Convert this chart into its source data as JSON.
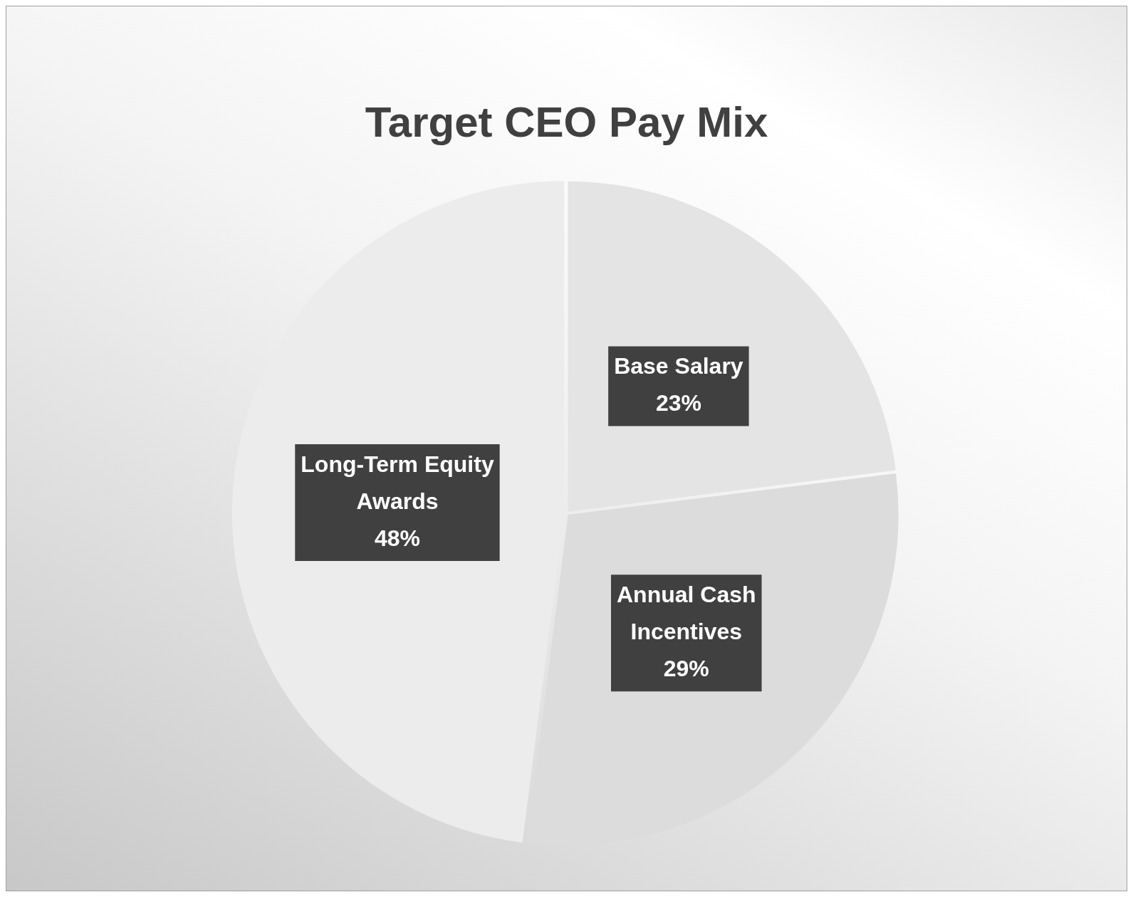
{
  "chart_data": {
    "type": "pie",
    "title": "Target CEO Pay Mix",
    "categories": [
      "Base Salary",
      "Annual Cash Incentives",
      "Long-Term Equity Awards"
    ],
    "values": [
      23,
      29,
      48
    ],
    "value_labels": [
      "23%",
      "29%",
      "48%"
    ],
    "colors": [
      "#e4e4e4",
      "#dcdcdc",
      "#ececec"
    ],
    "legend": false
  }
}
